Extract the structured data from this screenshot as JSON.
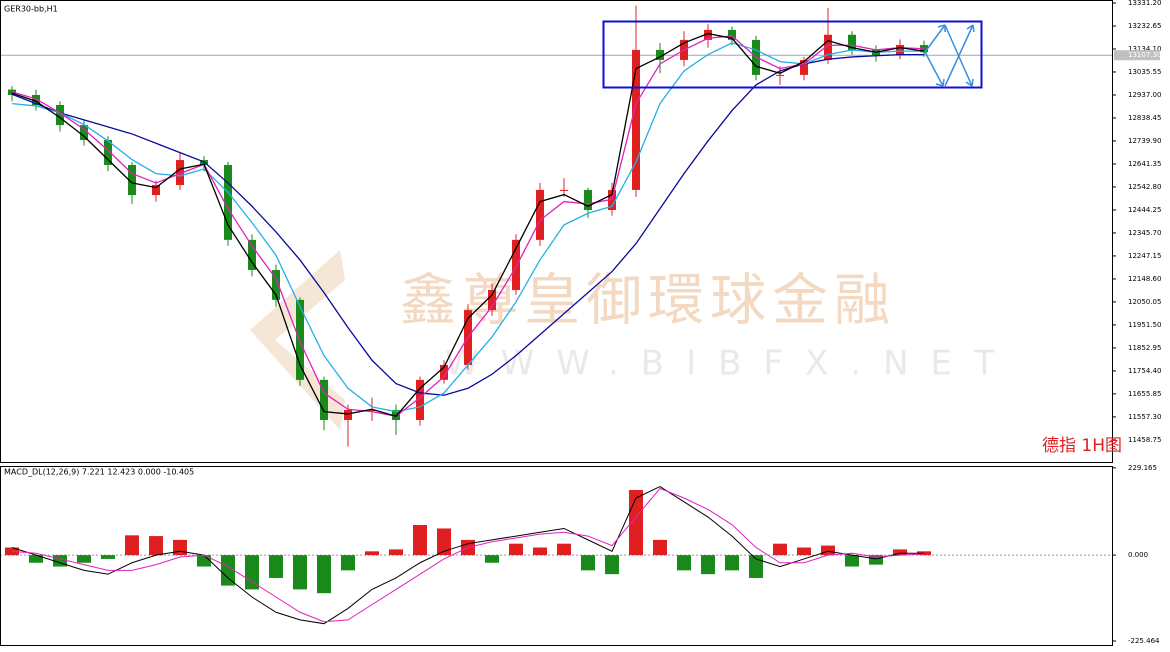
{
  "chart_data": [
    {
      "type": "candlestick",
      "title": "GER30-bb,H1",
      "annotations": [
        "鑫尊皇御環球金融",
        "WWW.BIBFX.NET",
        "德指 1H图"
      ],
      "up_color": "#e02020",
      "down_color": "#1a8a1a",
      "open": [
        12960,
        12937,
        12894,
        12808,
        12744,
        12637,
        12508,
        12551,
        12658,
        12637,
        12316,
        12187,
        12059,
        11716,
        11544,
        11587,
        11587,
        11544,
        11716,
        11780,
        12015,
        12101,
        12316,
        12530,
        12530,
        12444,
        12530,
        13130,
        13087,
        13173,
        13216,
        13173,
        13023,
        13023,
        13087,
        13195,
        13130,
        13108,
        13151
      ],
      "high": [
        12975,
        12960,
        12910,
        12830,
        12760,
        12650,
        12570,
        12690,
        12675,
        12650,
        12340,
        12210,
        12070,
        11730,
        11610,
        11640,
        11610,
        11730,
        11800,
        12040,
        12130,
        12340,
        12560,
        12580,
        12540,
        12560,
        13320,
        13160,
        13210,
        13240,
        13230,
        13190,
        13060,
        13100,
        13310,
        13210,
        13150,
        13175,
        13170
      ],
      "low": [
        12910,
        12870,
        12780,
        12720,
        12610,
        12470,
        12480,
        12530,
        12610,
        12290,
        12160,
        12030,
        11690,
        11500,
        11430,
        11540,
        11480,
        11520,
        11700,
        11760,
        11990,
        12080,
        12290,
        12500,
        12410,
        12420,
        12500,
        13030,
        13060,
        13140,
        13150,
        13000,
        12980,
        13000,
        13070,
        13110,
        13080,
        13090,
        13100
      ],
      "close": [
        12937,
        12894,
        12808,
        12744,
        12637,
        12508,
        12551,
        12658,
        12637,
        12316,
        12187,
        12059,
        11716,
        11544,
        11587,
        11587,
        11544,
        11716,
        11780,
        12015,
        12101,
        12316,
        12530,
        12530,
        12444,
        12530,
        13130,
        13087,
        13173,
        13216,
        13173,
        13023,
        13023,
        13087,
        13195,
        13130,
        13108,
        13151,
        13120
      ],
      "series": [
        {
          "color": "#0a0a9a",
          "values": [
            12940,
            12900,
            12860,
            12830,
            12800,
            12770,
            12730,
            12690,
            12650,
            12560,
            12460,
            12350,
            12230,
            12090,
            11940,
            11800,
            11700,
            11660,
            11650,
            11680,
            11740,
            11820,
            11910,
            12000,
            12090,
            12180,
            12300,
            12450,
            12600,
            12740,
            12870,
            12980,
            13040,
            13070,
            13090,
            13100,
            13105,
            13110,
            13110
          ]
        },
        {
          "color": "#22b0e8",
          "values": [
            12900,
            12890,
            12860,
            12810,
            12740,
            12660,
            12600,
            12590,
            12620,
            12520,
            12390,
            12250,
            12030,
            11820,
            11680,
            11600,
            11580,
            11600,
            11660,
            11780,
            11900,
            12050,
            12230,
            12380,
            12430,
            12460,
            12650,
            12900,
            13040,
            13110,
            13160,
            13130,
            13080,
            13070,
            13110,
            13130,
            13120,
            13125,
            13125
          ]
        },
        {
          "color": "#e020c0",
          "values": [
            12950,
            12920,
            12860,
            12790,
            12700,
            12600,
            12560,
            12600,
            12640,
            12450,
            12290,
            12150,
            11880,
            11660,
            11590,
            11580,
            11560,
            11640,
            11730,
            11900,
            12030,
            12200,
            12400,
            12480,
            12470,
            12490,
            12900,
            13070,
            13130,
            13180,
            13190,
            13100,
            13050,
            13070,
            13150,
            13150,
            13130,
            13140,
            13135
          ]
        },
        {
          "color": "#000000",
          "values": [
            12945,
            12910,
            12840,
            12760,
            12660,
            12560,
            12540,
            12620,
            12640,
            12380,
            12220,
            12080,
            11780,
            11580,
            11570,
            11590,
            11560,
            11680,
            11770,
            11980,
            12080,
            12280,
            12480,
            12510,
            12460,
            12510,
            13050,
            13100,
            13160,
            13200,
            13180,
            13060,
            13030,
            13080,
            13170,
            13140,
            13120,
            13140,
            13125
          ]
        }
      ],
      "last_price": {
        "value": 13107.3,
        "label": "13107.30"
      },
      "ylim": [
        11364,
        13344
      ],
      "yticks": [
        {
          "value": 13331.2,
          "label": "13331.20"
        },
        13232.65,
        {
          "value": 13134.1,
          "label": "13134.10"
        },
        13035.55,
        {
          "value": 12937,
          "label": "12937.00"
        },
        12838.45,
        {
          "value": 12739.9,
          "label": "12739.90"
        },
        12641.35,
        {
          "value": 12542.8,
          "label": "12542.80"
        },
        12444.25,
        {
          "value": 12345.7,
          "label": "12345.70"
        },
        12247.15,
        {
          "value": 12148.6,
          "label": "12148.60"
        },
        12050.05,
        {
          "value": 11951.5,
          "label": "11951.50"
        },
        11852.95,
        {
          "value": 11754.4,
          "label": "11754.40"
        },
        11655.85,
        {
          "value": 11557.3,
          "label": "11557.30"
        },
        11458.75
      ]
    },
    {
      "type": "macd",
      "title": "MACD_DL(12,26,9) 7.221 12.423 0.000 -10.405",
      "up_color": "#e02020",
      "down_color": "#1a8a1a",
      "values": [
        20,
        -20,
        -30,
        -20,
        -10,
        52,
        50,
        40,
        -30,
        -80,
        -90,
        -60,
        -90,
        -100,
        -40,
        10,
        15,
        79,
        70,
        40,
        -20,
        30,
        20,
        30,
        -40,
        -50,
        171,
        40,
        -40,
        -50,
        -40,
        -60,
        30,
        20,
        25,
        -30,
        -25,
        15,
        10
      ],
      "series": [
        {
          "color": "#000000",
          "values": [
            20,
            0,
            -20,
            -40,
            -50,
            -20,
            0,
            10,
            0,
            -60,
            -110,
            -150,
            -170,
            -180,
            -140,
            -90,
            -60,
            -20,
            10,
            30,
            40,
            50,
            60,
            70,
            40,
            10,
            150,
            180,
            140,
            100,
            50,
            -10,
            -30,
            -10,
            10,
            0,
            -10,
            5,
            5
          ]
        },
        {
          "color": "#e020c0",
          "values": [
            10,
            5,
            -10,
            -25,
            -40,
            -40,
            -25,
            -5,
            0,
            -30,
            -70,
            -110,
            -150,
            -175,
            -170,
            -130,
            -90,
            -50,
            -10,
            20,
            35,
            45,
            55,
            60,
            50,
            25,
            100,
            175,
            150,
            120,
            80,
            20,
            -20,
            -20,
            0,
            5,
            -5,
            0,
            3
          ]
        }
      ],
      "ylim": [
        -236,
        234
      ],
      "yticks": [
        229.165,
        {
          "value": 0,
          "label": "0.000"
        },
        -225.464
      ]
    }
  ]
}
